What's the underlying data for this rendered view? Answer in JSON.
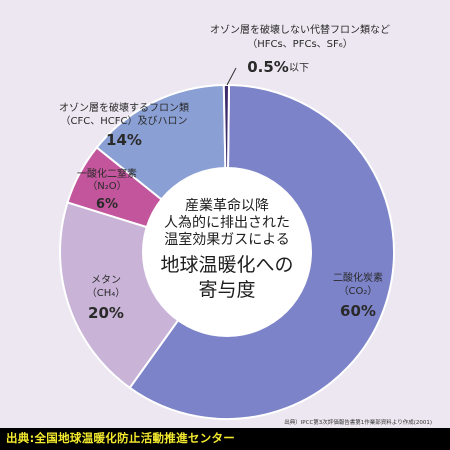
{
  "chart_data": {
    "type": "pie",
    "title_lines": [
      "産業革命以降",
      "人為的に排出された",
      "温室効果ガスによる",
      "地球温暖化への",
      "寄与度"
    ],
    "slices": [
      {
        "name": "二酸化炭素",
        "sub": "（CO₂）",
        "value": 60,
        "label": "60%",
        "color": "#7c83c8"
      },
      {
        "name": "メタン",
        "sub": "（CH₄）",
        "value": 20,
        "label": "20%",
        "color": "#c9b4d8"
      },
      {
        "name": "一酸化二窒素",
        "sub": "（N₂O）",
        "value": 6,
        "label": "6%",
        "color": "#c2559b"
      },
      {
        "name": "オゾン層を破壊するフロン類",
        "sub": "（CFC、HCFC）及びハロン",
        "value": 14,
        "label": "14%",
        "color": "#8a9fd4"
      },
      {
        "name": "オゾン層を破壊しない代替フロン類など",
        "sub": "（HFCs、PFCs、SF₆）",
        "value": 0.5,
        "label": "0.5%",
        "label_suffix": "以下",
        "color": "#3d2a6b"
      }
    ],
    "note": "出典）IPCC第3次評価報告書第1作業部資料より作成(2001)"
  },
  "footer": {
    "source": "出典:全国地球温暖化防止活動推進センター"
  }
}
